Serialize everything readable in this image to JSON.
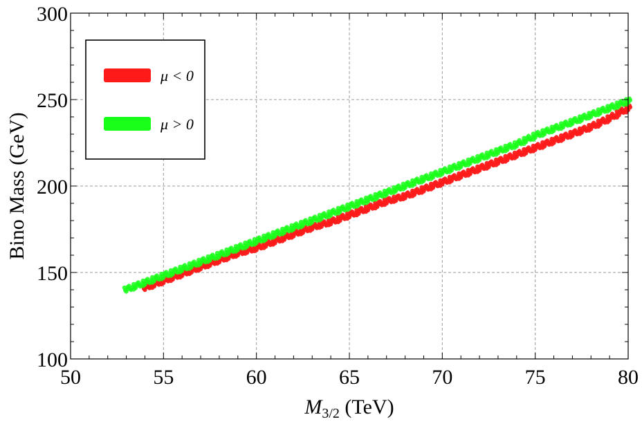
{
  "chart_data": {
    "type": "scatter",
    "title": "",
    "xlabel_main": "M",
    "xlabel_sub": "3/2",
    "xlabel_unit": " (TeV)",
    "ylabel": "Bino Mass (GeV)",
    "xlim": [
      50,
      80
    ],
    "ylim": [
      100,
      300
    ],
    "xticks": [
      50,
      55,
      60,
      65,
      70,
      75,
      80
    ],
    "yticks": [
      100,
      150,
      200,
      250,
      300
    ],
    "xtick_labels": [
      "50",
      "55",
      "60",
      "65",
      "70",
      "75",
      "80"
    ],
    "ytick_labels": [
      "100",
      "150",
      "200",
      "250",
      "300"
    ],
    "grid": true,
    "legend": {
      "position": "top-left",
      "entries": [
        {
          "label": "μ < 0",
          "color": "#ff1a1a"
        },
        {
          "label": "μ > 0",
          "color": "#1aff1a"
        }
      ]
    },
    "series": [
      {
        "name": "μ < 0",
        "color": "#ff1a1a",
        "x": [
          54.0,
          55.0,
          56.0,
          57.0,
          58.0,
          59.0,
          60.0,
          61.0,
          62.0,
          63.0,
          64.0,
          65.0,
          66.0,
          67.0,
          68.0,
          69.0,
          70.0,
          71.0,
          72.0,
          73.0,
          74.0,
          75.0,
          76.0,
          77.0,
          78.0,
          79.0,
          80.0
        ],
        "y": [
          141,
          145,
          149,
          153,
          157,
          161,
          164,
          168,
          172,
          176,
          179,
          183,
          187,
          191,
          194,
          198,
          202,
          206,
          210,
          214,
          218,
          222,
          226,
          230,
          234,
          239,
          245
        ]
      },
      {
        "name": "μ > 0",
        "color": "#1aff1a",
        "x": [
          53.0,
          54.0,
          55.0,
          56.0,
          57.0,
          58.0,
          59.0,
          60.0,
          61.0,
          62.0,
          63.0,
          64.0,
          65.0,
          66.0,
          67.0,
          68.0,
          69.0,
          70.0,
          71.0,
          72.0,
          73.0,
          74.0,
          75.0,
          76.0,
          77.0,
          78.0,
          79.0,
          80.0
        ],
        "y": [
          140,
          144,
          148,
          152,
          156,
          160,
          164,
          168,
          172,
          176,
          180,
          184,
          188,
          192,
          196,
          200,
          204,
          208,
          212,
          216,
          220,
          224,
          229,
          233,
          237,
          241,
          245,
          249
        ]
      }
    ]
  }
}
